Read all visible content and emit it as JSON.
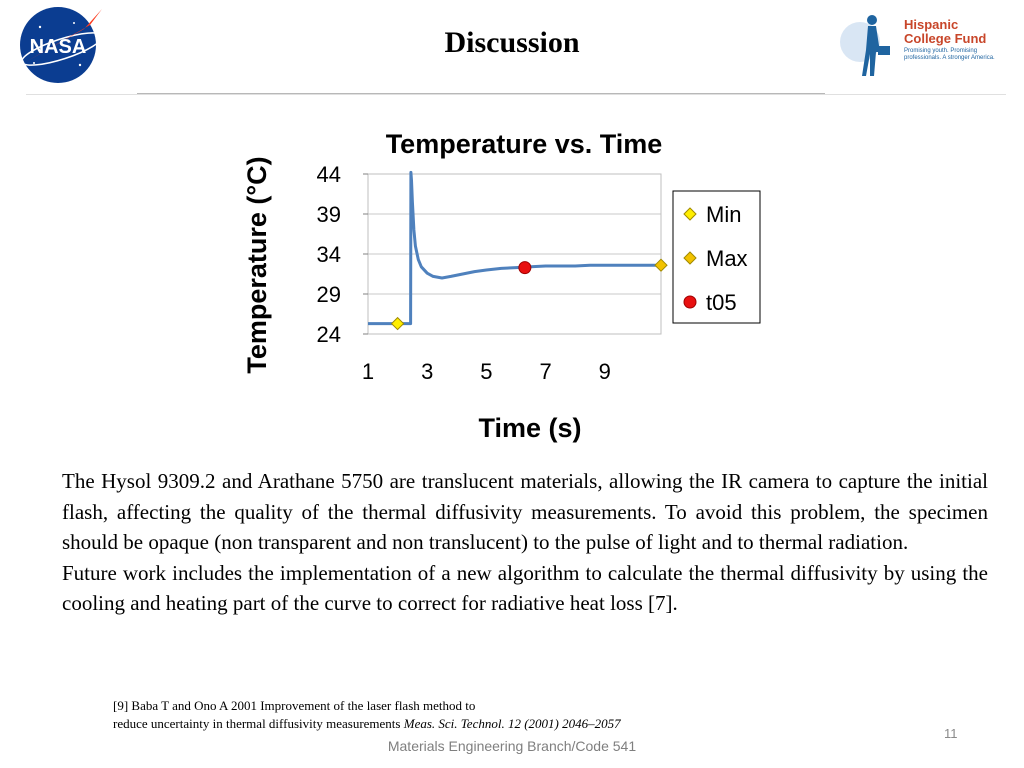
{
  "slide": {
    "title": "Discussion",
    "page_number": "11",
    "footer": "Materials Engineering Branch/Code 541"
  },
  "logos": {
    "nasa": {
      "text": "NASA",
      "color": "#0b3d91"
    },
    "hcf": {
      "line1": "Hispanic",
      "line2": "College Fund",
      "tagline": "Promising youth. Promising professionals. A stronger America.",
      "color": "#c8462a"
    }
  },
  "chart_data": {
    "type": "line",
    "title": "Temperature vs. Time",
    "xlabel": "Time (s)",
    "ylabel": "Temperature (°C)",
    "xlim": [
      1,
      10.9
    ],
    "ylim": [
      24,
      44
    ],
    "x_ticks": [
      "1",
      "3",
      "5",
      "7",
      "9"
    ],
    "y_ticks": [
      "44",
      "39",
      "34",
      "29",
      "24"
    ],
    "grid": true,
    "legend_position": "right",
    "series": [
      {
        "color": "#4f81bd",
        "x": [
          1.0,
          2.0,
          2.4,
          2.44,
          2.45,
          2.47,
          2.5,
          2.55,
          2.6,
          2.7,
          2.8,
          3.0,
          3.2,
          3.5,
          3.8,
          4.2,
          4.6,
          5.0,
          5.5,
          6.0,
          6.5,
          7.0,
          7.5,
          8.0,
          8.5,
          9.0,
          9.5,
          10.0,
          10.5,
          10.9
        ],
        "y": [
          25.3,
          25.3,
          25.3,
          25.3,
          44.2,
          43.2,
          40.5,
          37.0,
          35.0,
          33.3,
          32.4,
          31.6,
          31.2,
          31.0,
          31.2,
          31.5,
          31.8,
          32.0,
          32.2,
          32.3,
          32.4,
          32.5,
          32.5,
          32.5,
          32.6,
          32.6,
          32.6,
          32.6,
          32.6,
          32.6
        ]
      }
    ],
    "markers": [
      {
        "name": "Min",
        "x": 2.0,
        "y": 25.3,
        "shape": "diamond",
        "color": "#ffee00"
      },
      {
        "name": "Max",
        "x": 10.9,
        "y": 32.6,
        "shape": "diamond",
        "color": "#f2c200"
      },
      {
        "name": "t05",
        "x": 6.3,
        "y": 32.3,
        "shape": "circle",
        "color": "#e81010"
      }
    ]
  },
  "text": {
    "paragraph1": "The Hysol 9309.2 and Arathane 5750 are translucent materials, allowing the IR camera to capture the initial flash, affecting the quality of the  thermal diffusivity measurements. To avoid this problem, the specimen should be opaque (non transparent and non translucent) to the pulse of light and to thermal radiation.",
    "paragraph2": "Future work includes the implementation of a new algorithm to calculate the thermal diffusivity by  using the cooling and heating part of the curve to correct for radiative heat loss [7]."
  },
  "reference": {
    "line1": "[9] Baba T and Ono A 2001 Improvement of the laser flash method to",
    "line2_plain": "reduce uncertainty in thermal diffusivity measurements ",
    "line2_italic": "Meas. Sci. Technol. 12 (2001) 2046–2057"
  }
}
